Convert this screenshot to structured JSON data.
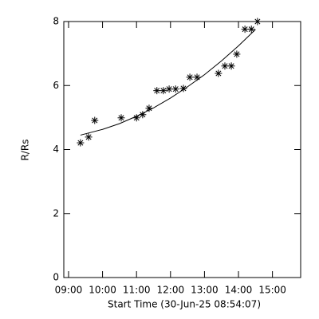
{
  "chart_data": {
    "type": "scatter",
    "x_label": "Start Time (30-Jun-25 08:54:07)",
    "y_label": "R/Rs",
    "xlim": [
      8.86,
      15.83
    ],
    "ylim": [
      0,
      8
    ],
    "xticks": [
      {
        "value": 9,
        "label": "09:00"
      },
      {
        "value": 10,
        "label": "10:00"
      },
      {
        "value": 11,
        "label": "11:00"
      },
      {
        "value": 12,
        "label": "12:00"
      },
      {
        "value": 13,
        "label": "13:00"
      },
      {
        "value": 14,
        "label": "14:00"
      },
      {
        "value": 15,
        "label": "15:00"
      }
    ],
    "yticks": [
      0,
      2,
      4,
      6,
      8
    ],
    "series": [
      {
        "color": "#000000",
        "marker": "asterisk",
        "x": [
          9.35,
          9.59,
          9.77,
          10.55,
          11.0,
          11.18,
          11.37,
          11.6,
          11.79,
          11.96,
          12.15,
          12.38,
          12.57,
          12.78,
          13.41,
          13.6,
          13.79,
          13.95,
          14.19,
          14.38,
          14.56
        ],
        "values": [
          4.21,
          4.39,
          4.91,
          4.99,
          4.99,
          5.09,
          5.29,
          5.84,
          5.84,
          5.89,
          5.89,
          5.91,
          6.26,
          6.26,
          6.38,
          6.61,
          6.61,
          6.98,
          7.76,
          7.76,
          8.0
        ]
      },
      {
        "color": "#000000",
        "marker": "line",
        "x": [
          9.35,
          10.0,
          10.5,
          11.0,
          11.5,
          12.0,
          12.5,
          13.0,
          13.5,
          14.0,
          14.5
        ],
        "values": [
          4.45,
          4.63,
          4.81,
          5.04,
          5.3,
          5.61,
          5.96,
          6.34,
          6.77,
          7.24,
          7.75
        ]
      }
    ]
  }
}
